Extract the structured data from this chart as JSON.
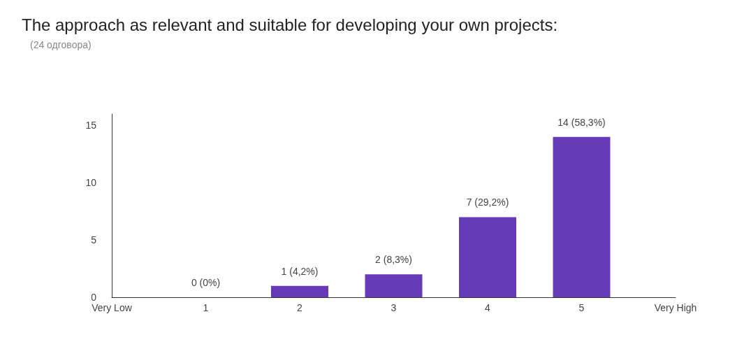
{
  "chart_data": {
    "type": "bar",
    "title": "The approach as relevant and suitable for developing your own projects:",
    "subtitle": "(24 одговора)",
    "x": [
      1,
      2,
      3,
      4,
      5
    ],
    "values": [
      0,
      1,
      2,
      7,
      14
    ],
    "value_labels": [
      "0 (0%)",
      "1 (4,2%)",
      "2 (8,3%)",
      "7 (29,2%)",
      "14 (58,3%)"
    ],
    "color": "#673ab7",
    "xlim": [
      0,
      6
    ],
    "xticks": [
      {
        "value": 0,
        "label": "Very Low"
      },
      1,
      2,
      3,
      4,
      5,
      {
        "value": 6,
        "label": "Very High"
      }
    ],
    "ylim": [
      0,
      16
    ],
    "yticks": [
      0,
      5,
      10,
      15
    ]
  }
}
